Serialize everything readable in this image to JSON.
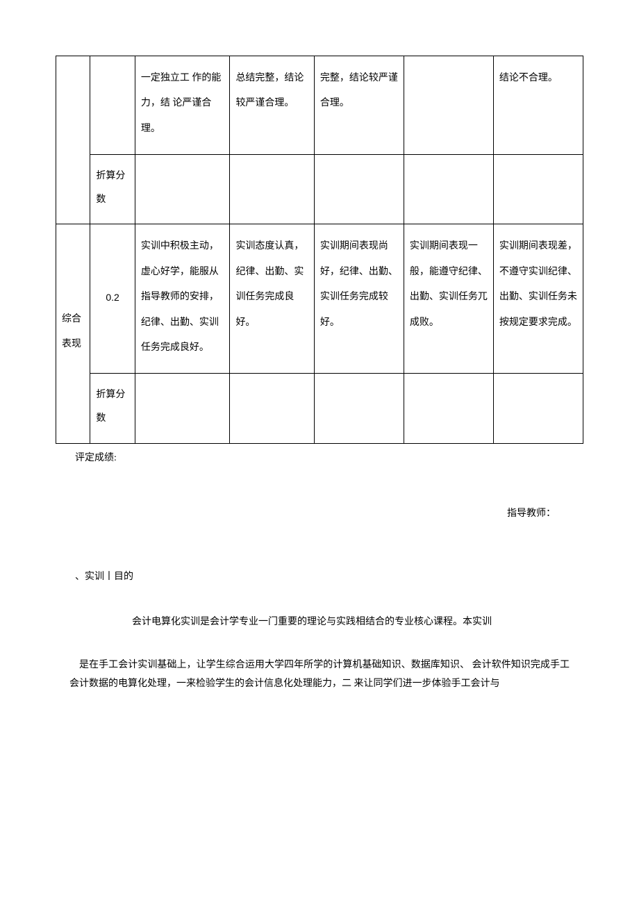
{
  "table": {
    "row1": {
      "c2": "一定独立工 作的能力，结 论严谨合理。",
      "c3": "总结完整，结论较严谨合理。",
      "c4": "完整，结论较严谨合理。",
      "c5": "",
      "c6": "结论不合理。"
    },
    "row2_label": "折算分数",
    "row3": {
      "c0": "综合表现",
      "c1": "0.2",
      "c2": "实训中积极主动，虚心好学，能服从指导教师的安排，纪律、出勤、实训任务完成良好。",
      "c3": "实训态度认真，纪律、出勤、实训任务完成良好。",
      "c4": "实训期间表现尚好，纪律、出勤、实训任务完成较好。",
      "c5": "实训期间表现一般，能遵守纪律、出勤、实训任务兀成败。",
      "c6": "实训期间表现差，不遵守实训纪律、出勤、实训任务未按规定要求完成。"
    },
    "row4_label": "折算分数"
  },
  "after": {
    "grade_label": "评定成绩:",
    "teacher_label": "指导教师：",
    "section_title": "、实训丨目的",
    "para1": "会计电算化实训是会计学专业一门重要的理论与实践相结合的专业核心课程。本实训",
    "para2": "是在手工会计实训基础上，让学生综合运用大学四年所学的计算机基础知识、数据库知识、 会计软件知识完成手工会计数据的电算化处理，一来检验学生的会计信息化处理能力，二 来让同学们进一步体验手工会计与"
  }
}
